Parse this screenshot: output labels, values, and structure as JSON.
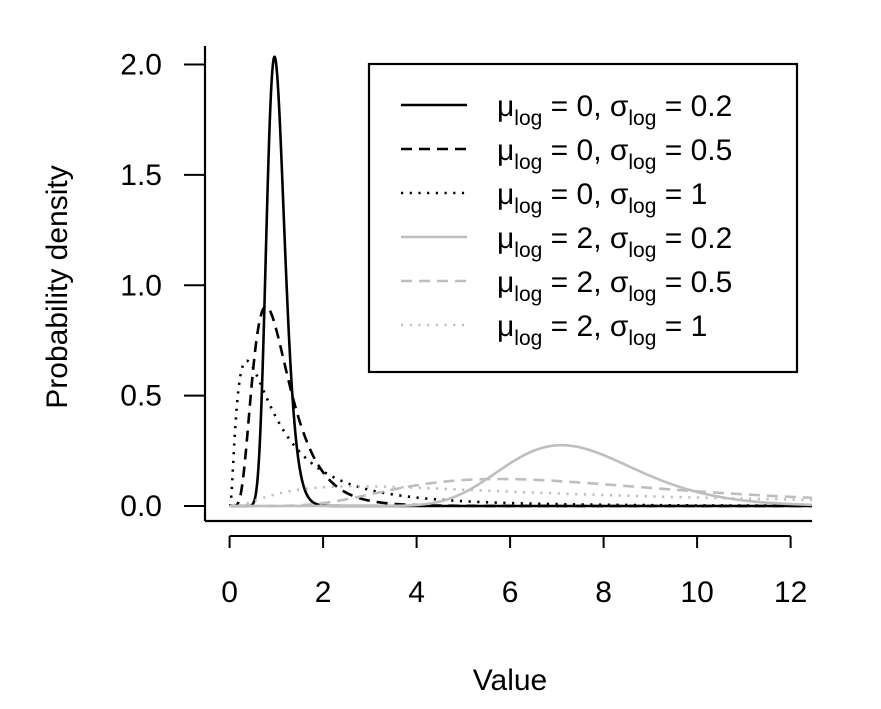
{
  "chart_data": {
    "type": "line",
    "title": "",
    "xlabel": "Value",
    "ylabel": "Probability density",
    "xlim": [
      -0.5,
      12.5
    ],
    "ylim": [
      -0.07,
      2.1
    ],
    "x_ticks": [
      0,
      2,
      4,
      6,
      8,
      10,
      12
    ],
    "x_tick_labels": [
      "0",
      "2",
      "4",
      "6",
      "8",
      "10",
      "12"
    ],
    "y_ticks": [
      0.0,
      0.5,
      1.0,
      1.5,
      2.0
    ],
    "y_tick_labels": [
      "0.0",
      "0.5",
      "1.0",
      "1.5",
      "2.0"
    ],
    "grid": false,
    "legend_position": "top-right",
    "series": [
      {
        "mu": 0,
        "sigma": 0.2,
        "label_mu": "0",
        "label_sigma": "0.2",
        "color": "#000000",
        "style": "solid"
      },
      {
        "mu": 0,
        "sigma": 0.5,
        "label_mu": "0",
        "label_sigma": "0.5",
        "color": "#000000",
        "style": "dashed"
      },
      {
        "mu": 0,
        "sigma": 1,
        "label_mu": "0",
        "label_sigma": "1",
        "color": "#000000",
        "style": "dotted"
      },
      {
        "mu": 2,
        "sigma": 0.2,
        "label_mu": "2",
        "label_sigma": "0.2",
        "color": "#bebebe",
        "style": "solid"
      },
      {
        "mu": 2,
        "sigma": 0.5,
        "label_mu": "2",
        "label_sigma": "0.5",
        "color": "#bebebe",
        "style": "dashed"
      },
      {
        "mu": 2,
        "sigma": 1,
        "label_mu": "2",
        "label_sigma": "1",
        "color": "#bebebe",
        "style": "dotted"
      }
    ]
  }
}
